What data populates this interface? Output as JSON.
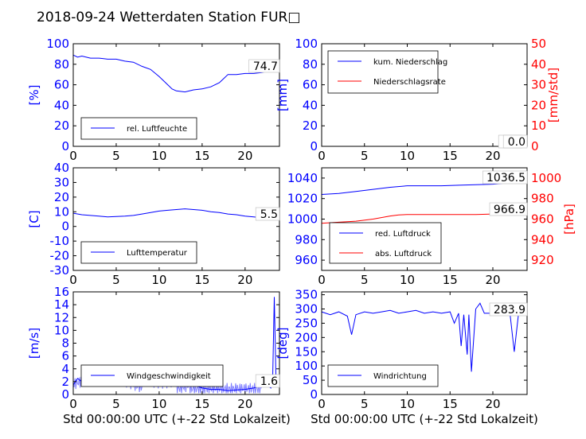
{
  "figure": {
    "title": "2018-09-24 Wetterdaten Station FUR□",
    "xlabel": "Std 00:00:00 UTC (+-22 Std Lokalzeit)"
  },
  "colors": {
    "blue": "#0000ff",
    "red": "#ff0000",
    "light_blue": "#8080ff",
    "black": "#000000"
  },
  "chart_data": [
    {
      "type": "line",
      "panel": "humidity",
      "ylabel": "[%]",
      "xlim": [
        0,
        24
      ],
      "ylim": [
        0,
        100
      ],
      "xticks": [
        0,
        5,
        10,
        15,
        20
      ],
      "yticks": [
        0,
        20,
        40,
        60,
        80,
        100
      ],
      "legend_placement": "lower-left",
      "current_label": "74.7",
      "series": [
        {
          "name": "rel. Luftfeuchte",
          "color": "blue",
          "x": [
            0,
            0.5,
            1,
            2,
            3,
            4,
            5,
            6,
            7,
            8,
            9,
            10,
            11,
            11.5,
            12,
            13,
            14,
            15,
            16,
            17,
            17.5,
            18,
            19,
            20,
            21,
            22,
            23,
            24
          ],
          "y": [
            89,
            87,
            88,
            86,
            86,
            85,
            85,
            83,
            82,
            78,
            75,
            68,
            60,
            56,
            54,
            53,
            55,
            56,
            58,
            62,
            66,
            70,
            70,
            71,
            71,
            72,
            74,
            75
          ]
        }
      ]
    },
    {
      "type": "line",
      "panel": "precipitation",
      "ylabel": "[mm]",
      "ylabel_right": "[mm/std]",
      "xlim": [
        0,
        24
      ],
      "ylim": [
        0,
        100
      ],
      "ylim_right": [
        0,
        50
      ],
      "xticks": [
        0,
        5,
        10,
        15,
        20
      ],
      "yticks": [
        0,
        20,
        40,
        60,
        80,
        100
      ],
      "yticks_right": [
        0,
        10,
        20,
        30,
        40,
        50
      ],
      "legend_placement": "upper-left",
      "current_label_left": "0.0",
      "current_label_right": "0.0",
      "series": [
        {
          "name": "kum. Niederschlag",
          "color": "blue",
          "x": [
            0,
            24
          ],
          "y": [
            0,
            0
          ]
        },
        {
          "name": "Niederschlagsrate",
          "color": "red",
          "x": [
            0,
            24
          ],
          "y": [
            0,
            0
          ]
        }
      ]
    },
    {
      "type": "line",
      "panel": "temperature",
      "ylabel": "[C]",
      "xlim": [
        0,
        24
      ],
      "ylim": [
        -30,
        40
      ],
      "xticks": [
        0,
        5,
        10,
        15,
        20
      ],
      "yticks": [
        -30,
        -20,
        -10,
        0,
        10,
        20,
        30,
        40
      ],
      "legend_placement": "lower-left",
      "current_label": "5.5",
      "series": [
        {
          "name": "Lufttemperatur",
          "color": "blue",
          "x": [
            0,
            1,
            2,
            3,
            4,
            5,
            6,
            7,
            8,
            9,
            10,
            11,
            12,
            13,
            14,
            15,
            16,
            17,
            18,
            19,
            20,
            21,
            22,
            23,
            24
          ],
          "y": [
            9,
            8,
            7.5,
            7,
            6.5,
            6.8,
            7,
            7.5,
            8.5,
            9.5,
            10.5,
            11,
            11.5,
            12,
            11.5,
            11,
            10,
            9.5,
            8.5,
            8,
            7,
            6.5,
            6,
            5.5,
            5.5
          ]
        }
      ]
    },
    {
      "type": "line",
      "panel": "pressure",
      "ylabel_right": "[hPa]",
      "xlim": [
        0,
        24
      ],
      "ylim": [
        950,
        1050
      ],
      "ylim_right": [
        910,
        1010
      ],
      "xticks": [
        0,
        5,
        10,
        15,
        20
      ],
      "yticks": [
        960,
        980,
        1000,
        1020,
        1040
      ],
      "yticks_right": [
        920,
        940,
        960,
        980,
        1000
      ],
      "legend_placement": "lower-left",
      "current_label_left": "1036.5",
      "current_label_right": "966.9",
      "series": [
        {
          "name": "red. Luftdruck",
          "color": "blue",
          "axis": "left",
          "x": [
            0,
            2,
            4,
            6,
            8,
            10,
            12,
            14,
            16,
            18,
            20,
            22,
            24
          ],
          "y": [
            1024,
            1025,
            1027,
            1029,
            1031,
            1032.5,
            1032.5,
            1032.5,
            1033,
            1033.5,
            1034,
            1035.5,
            1036.5
          ]
        },
        {
          "name": "abs. Luftdruck",
          "color": "red",
          "axis": "right",
          "x": [
            0,
            2,
            4,
            6,
            8,
            9,
            10,
            12,
            14,
            16,
            18,
            20,
            22,
            24
          ],
          "y": [
            956,
            957,
            958,
            960,
            963,
            964,
            964.5,
            964.5,
            964.5,
            964.5,
            964.5,
            965,
            966,
            966.9
          ]
        }
      ]
    },
    {
      "type": "line",
      "panel": "wind_speed",
      "ylabel": "[m/s]",
      "xlim": [
        0,
        24
      ],
      "ylim": [
        0,
        16
      ],
      "xticks": [
        0,
        5,
        10,
        15,
        20
      ],
      "yticks": [
        0,
        2,
        4,
        6,
        8,
        10,
        12,
        14,
        16
      ],
      "legend_placement": "lower-left",
      "current_label": "1.6",
      "series": [
        {
          "name": "Windgeschwindigkeit",
          "color": "blue",
          "x": [
            0,
            0.5,
            1,
            2,
            3,
            4,
            5,
            6,
            7,
            8,
            9,
            10,
            11,
            12,
            13,
            14,
            15,
            16,
            17,
            18,
            19,
            20,
            21,
            21.5,
            22,
            22.5,
            23,
            23.2,
            23.4,
            23.6,
            24
          ],
          "y": [
            1.5,
            2.5,
            2,
            1.5,
            1.8,
            1.5,
            2,
            2.2,
            2.5,
            2.8,
            2.8,
            3.2,
            3,
            2,
            1.5,
            1.5,
            1,
            0.8,
            0.8,
            0.6,
            0.7,
            0.8,
            1,
            1.2,
            3,
            1.5,
            1,
            2,
            15.2,
            1.8,
            1.6
          ]
        }
      ]
    },
    {
      "type": "line",
      "panel": "wind_direction",
      "ylabel": "[deg]",
      "xlim": [
        0,
        24
      ],
      "ylim": [
        0,
        360
      ],
      "xticks": [
        0,
        5,
        10,
        15,
        20
      ],
      "yticks": [
        0,
        50,
        100,
        150,
        200,
        250,
        300,
        350
      ],
      "legend_placement": "lower-left",
      "current_label": "283.9",
      "series": [
        {
          "name": "Windrichtung",
          "color": "blue",
          "x": [
            0,
            1,
            2,
            3,
            3.5,
            4,
            5,
            6,
            7,
            8,
            9,
            10,
            11,
            12,
            13,
            14,
            15,
            15.5,
            16,
            16.3,
            16.6,
            17,
            17.2,
            17.5,
            18,
            18.5,
            19,
            20,
            21,
            22,
            22.5,
            23,
            24
          ],
          "y": [
            290,
            280,
            290,
            275,
            210,
            280,
            290,
            285,
            290,
            295,
            285,
            290,
            295,
            285,
            290,
            285,
            290,
            250,
            285,
            170,
            280,
            140,
            280,
            80,
            300,
            320,
            285,
            285,
            280,
            285,
            150,
            285,
            284
          ]
        }
      ]
    }
  ]
}
